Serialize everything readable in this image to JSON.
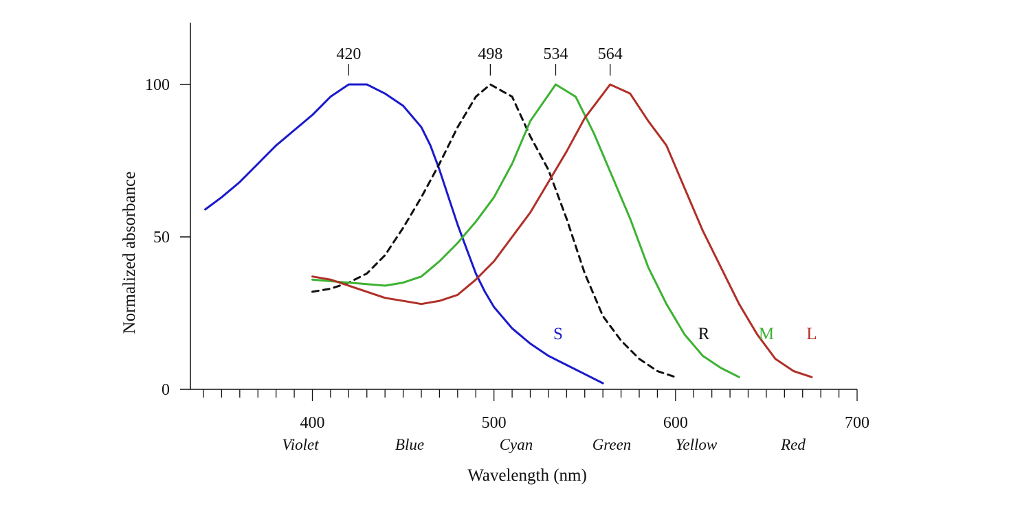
{
  "chart_data": {
    "type": "line",
    "title": "",
    "xlabel": "Wavelength (nm)",
    "ylabel": "Normalized absorbance",
    "xlim": [
      340,
      700
    ],
    "ylim": [
      0,
      120
    ],
    "x_tick_labels": [
      400,
      500,
      600,
      700
    ],
    "y_tick_labels": [
      0,
      50,
      100
    ],
    "grid": false,
    "color_bands": [
      "Violet",
      "Blue",
      "Cyan",
      "Green",
      "Yellow",
      "Red"
    ],
    "peaks": [
      "420",
      "498",
      "534",
      "564"
    ],
    "series": [
      {
        "name": "S",
        "color": "#1a1acc",
        "dashed": false,
        "peak": 420,
        "points": [
          [
            341,
            59
          ],
          [
            350,
            63
          ],
          [
            360,
            68
          ],
          [
            370,
            74
          ],
          [
            380,
            80
          ],
          [
            390,
            85
          ],
          [
            400,
            90
          ],
          [
            410,
            96
          ],
          [
            420,
            100
          ],
          [
            430,
            100
          ],
          [
            440,
            97
          ],
          [
            450,
            93
          ],
          [
            460,
            86
          ],
          [
            465,
            80
          ],
          [
            470,
            72
          ],
          [
            475,
            63
          ],
          [
            480,
            54
          ],
          [
            485,
            46
          ],
          [
            490,
            38
          ],
          [
            495,
            32
          ],
          [
            500,
            27
          ],
          [
            510,
            20
          ],
          [
            520,
            15
          ],
          [
            530,
            11
          ],
          [
            540,
            8
          ],
          [
            550,
            5
          ],
          [
            560,
            2
          ]
        ]
      },
      {
        "name": "R",
        "color": "#111111",
        "dashed": true,
        "peak": 498,
        "points": [
          [
            400,
            32
          ],
          [
            410,
            33
          ],
          [
            420,
            35
          ],
          [
            430,
            38
          ],
          [
            440,
            44
          ],
          [
            450,
            53
          ],
          [
            460,
            63
          ],
          [
            470,
            74
          ],
          [
            480,
            86
          ],
          [
            490,
            96
          ],
          [
            498,
            100
          ],
          [
            510,
            96
          ],
          [
            520,
            83
          ],
          [
            530,
            72
          ],
          [
            540,
            56
          ],
          [
            550,
            38
          ],
          [
            560,
            24
          ],
          [
            570,
            16
          ],
          [
            580,
            10
          ],
          [
            590,
            6
          ],
          [
            600,
            4
          ]
        ]
      },
      {
        "name": "M",
        "color": "#3db233",
        "dashed": false,
        "peak": 534,
        "points": [
          [
            400,
            36
          ],
          [
            420,
            35
          ],
          [
            440,
            34
          ],
          [
            450,
            35
          ],
          [
            460,
            37
          ],
          [
            470,
            42
          ],
          [
            480,
            48
          ],
          [
            490,
            55
          ],
          [
            500,
            63
          ],
          [
            510,
            74
          ],
          [
            520,
            88
          ],
          [
            534,
            100
          ],
          [
            545,
            96
          ],
          [
            555,
            84
          ],
          [
            565,
            70
          ],
          [
            575,
            56
          ],
          [
            585,
            40
          ],
          [
            595,
            28
          ],
          [
            605,
            18
          ],
          [
            615,
            11
          ],
          [
            625,
            7
          ],
          [
            635,
            4
          ]
        ]
      },
      {
        "name": "L",
        "color": "#b03028",
        "dashed": false,
        "peak": 564,
        "points": [
          [
            400,
            37
          ],
          [
            410,
            36
          ],
          [
            420,
            34
          ],
          [
            430,
            32
          ],
          [
            440,
            30
          ],
          [
            450,
            29
          ],
          [
            460,
            28
          ],
          [
            470,
            29
          ],
          [
            480,
            31
          ],
          [
            490,
            36
          ],
          [
            500,
            42
          ],
          [
            510,
            50
          ],
          [
            520,
            58
          ],
          [
            530,
            68
          ],
          [
            540,
            78
          ],
          [
            550,
            89
          ],
          [
            564,
            100
          ],
          [
            575,
            97
          ],
          [
            585,
            88
          ],
          [
            595,
            80
          ],
          [
            605,
            66
          ],
          [
            615,
            52
          ],
          [
            625,
            40
          ],
          [
            635,
            28
          ],
          [
            645,
            18
          ],
          [
            655,
            10
          ],
          [
            665,
            6
          ],
          [
            675,
            4
          ]
        ]
      }
    ]
  }
}
